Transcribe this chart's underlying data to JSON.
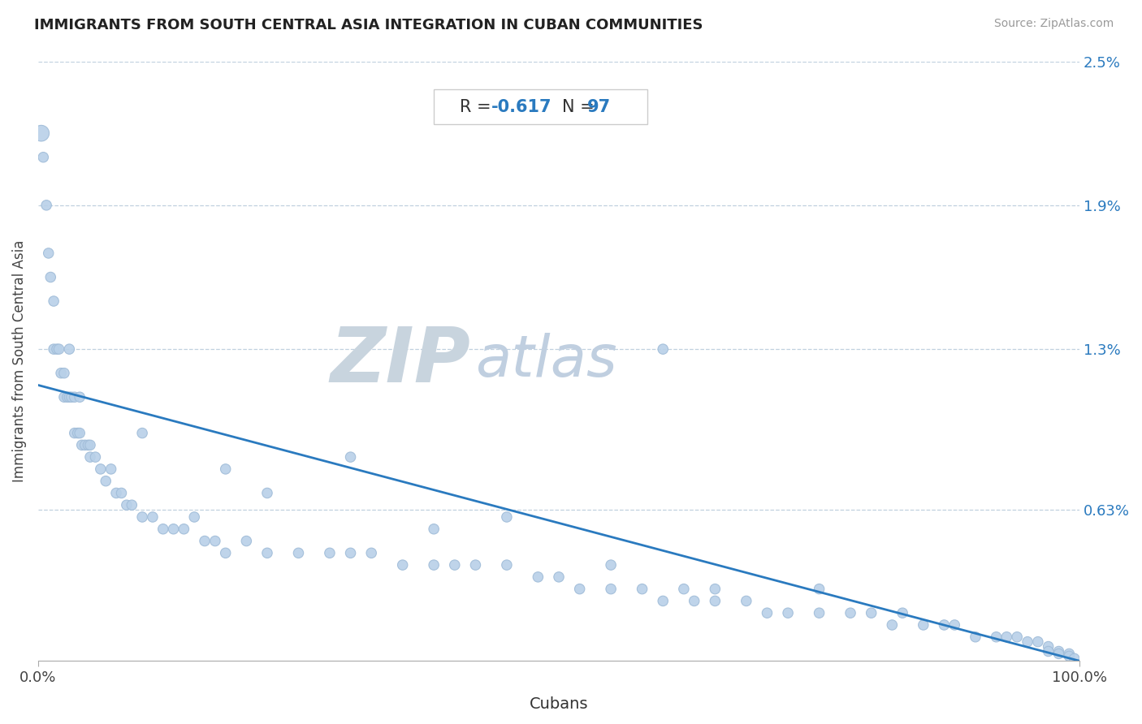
{
  "title": "IMMIGRANTS FROM SOUTH CENTRAL ASIA INTEGRATION IN CUBAN COMMUNITIES",
  "source": "Source: ZipAtlas.com",
  "xlabel": "Cubans",
  "ylabel": "Immigrants from South Central Asia",
  "R": -0.617,
  "N": 97,
  "xlim": [
    0.0,
    1.0
  ],
  "ylim": [
    0.0,
    0.025
  ],
  "yticks": [
    0.0063,
    0.013,
    0.019,
    0.025
  ],
  "ytick_labels": [
    "0.63%",
    "1.3%",
    "1.9%",
    "2.5%"
  ],
  "xtick_labels": [
    "0.0%",
    "100.0%"
  ],
  "xticks": [
    0.0,
    1.0
  ],
  "scatter_color": "#b8d0e8",
  "line_color": "#2a7abf",
  "annotation_R_label_color": "#333333",
  "annotation_value_color": "#2a7abf",
  "watermark_zip_color": "#c8d4de",
  "watermark_atlas_color": "#c0cfe0",
  "background_color": "#ffffff",
  "grid_color": "#c0d0df",
  "reg_line_x0": 0.0,
  "reg_line_y0": 0.0115,
  "reg_line_x1": 1.0,
  "reg_line_y1": 0.0,
  "scatter_points_x": [
    0.003,
    0.005,
    0.008,
    0.01,
    0.012,
    0.015,
    0.015,
    0.018,
    0.02,
    0.022,
    0.025,
    0.025,
    0.028,
    0.03,
    0.03,
    0.032,
    0.035,
    0.035,
    0.038,
    0.04,
    0.04,
    0.042,
    0.045,
    0.048,
    0.05,
    0.05,
    0.055,
    0.06,
    0.065,
    0.07,
    0.075,
    0.08,
    0.085,
    0.09,
    0.1,
    0.11,
    0.12,
    0.13,
    0.14,
    0.15,
    0.16,
    0.17,
    0.18,
    0.2,
    0.22,
    0.25,
    0.28,
    0.3,
    0.32,
    0.35,
    0.38,
    0.4,
    0.42,
    0.45,
    0.48,
    0.5,
    0.52,
    0.55,
    0.55,
    0.58,
    0.6,
    0.62,
    0.63,
    0.65,
    0.65,
    0.68,
    0.7,
    0.72,
    0.75,
    0.75,
    0.78,
    0.8,
    0.82,
    0.83,
    0.85,
    0.87,
    0.88,
    0.9,
    0.92,
    0.93,
    0.94,
    0.95,
    0.96,
    0.97,
    0.97,
    0.98,
    0.98,
    0.99,
    0.99,
    0.995,
    0.3,
    0.45,
    0.6,
    0.1,
    0.18,
    0.22,
    0.38
  ],
  "scatter_points_y": [
    0.022,
    0.021,
    0.019,
    0.017,
    0.016,
    0.015,
    0.013,
    0.013,
    0.013,
    0.012,
    0.012,
    0.011,
    0.011,
    0.011,
    0.013,
    0.011,
    0.011,
    0.0095,
    0.0095,
    0.011,
    0.0095,
    0.009,
    0.009,
    0.009,
    0.009,
    0.0085,
    0.0085,
    0.008,
    0.0075,
    0.008,
    0.007,
    0.007,
    0.0065,
    0.0065,
    0.006,
    0.006,
    0.0055,
    0.0055,
    0.0055,
    0.006,
    0.005,
    0.005,
    0.0045,
    0.005,
    0.0045,
    0.0045,
    0.0045,
    0.0045,
    0.0045,
    0.004,
    0.004,
    0.004,
    0.004,
    0.004,
    0.0035,
    0.0035,
    0.003,
    0.003,
    0.004,
    0.003,
    0.0025,
    0.003,
    0.0025,
    0.003,
    0.0025,
    0.0025,
    0.002,
    0.002,
    0.002,
    0.003,
    0.002,
    0.002,
    0.0015,
    0.002,
    0.0015,
    0.0015,
    0.0015,
    0.001,
    0.001,
    0.001,
    0.001,
    0.0008,
    0.0008,
    0.0006,
    0.0004,
    0.0004,
    0.0003,
    0.0003,
    0.0002,
    0.0001,
    0.0085,
    0.006,
    0.013,
    0.0095,
    0.008,
    0.007,
    0.0055
  ],
  "scatter_sizes": [
    200,
    80,
    80,
    80,
    80,
    80,
    80,
    80,
    80,
    80,
    80,
    80,
    80,
    80,
    80,
    80,
    80,
    80,
    80,
    80,
    80,
    80,
    80,
    80,
    80,
    80,
    80,
    80,
    80,
    80,
    80,
    80,
    80,
    80,
    80,
    80,
    80,
    80,
    80,
    80,
    80,
    80,
    80,
    80,
    80,
    80,
    80,
    80,
    80,
    80,
    80,
    80,
    80,
    80,
    80,
    80,
    80,
    80,
    80,
    80,
    80,
    80,
    80,
    80,
    80,
    80,
    80,
    80,
    80,
    80,
    80,
    80,
    80,
    80,
    80,
    80,
    80,
    80,
    80,
    80,
    80,
    80,
    80,
    80,
    80,
    80,
    80,
    80,
    80,
    80,
    80,
    80,
    80,
    80,
    80,
    80,
    80
  ]
}
